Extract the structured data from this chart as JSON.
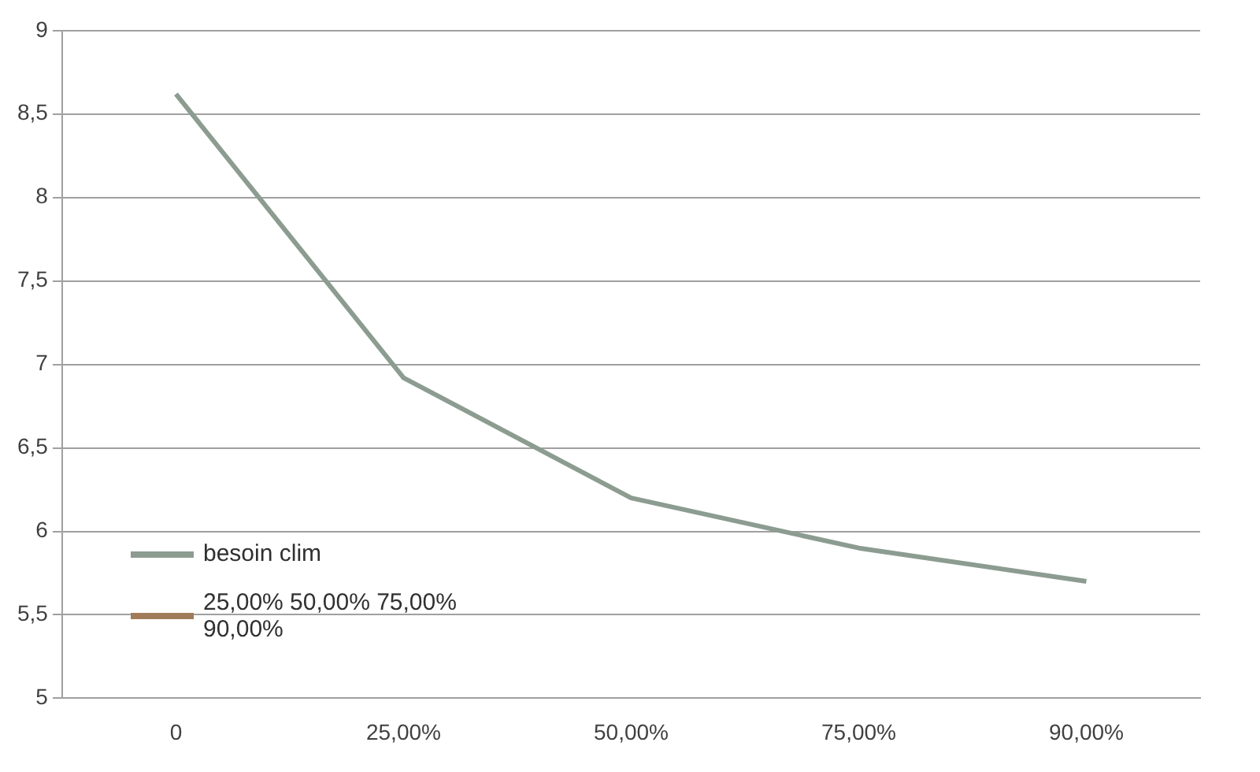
{
  "chart_data": {
    "type": "line",
    "categories": [
      "0",
      "25,00%",
      "50,00%",
      "75,00%",
      "90,00%"
    ],
    "series": [
      {
        "name": "besoin clim",
        "color": "#8c9c90",
        "values": [
          8.62,
          6.92,
          6.2,
          5.9,
          5.7
        ]
      },
      {
        "name": "25,00% 50,00% 75,00% 90,00%",
        "color": "#a07c5a",
        "values": [
          null,
          null,
          null,
          null,
          null
        ]
      }
    ],
    "ylim": [
      5,
      9
    ],
    "yticks": [
      5,
      {
        "value": 5.5,
        "label": "5,5"
      },
      6,
      {
        "value": 6.5,
        "label": "6,5"
      },
      7,
      {
        "value": 7.5,
        "label": "7,5"
      },
      8,
      {
        "value": 8.5,
        "label": "8,5"
      },
      9
    ],
    "grid": "y",
    "legend": "bottom left",
    "marker": "none",
    "line_style": "solid"
  }
}
